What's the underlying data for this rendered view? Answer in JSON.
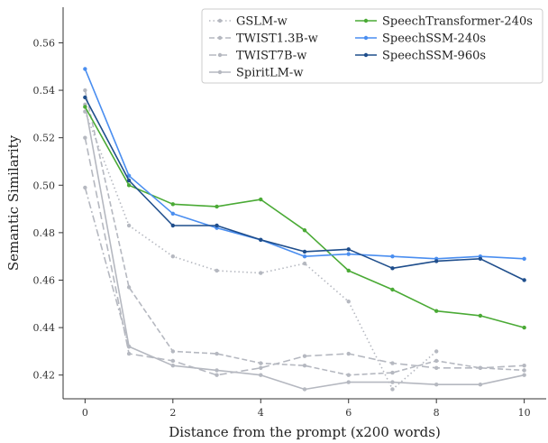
{
  "chart_data": {
    "type": "line",
    "xlabel": "Distance from the prompt (x200 words)",
    "ylabel": "Semantic Similarity",
    "xlim": [
      -0.5,
      10.5
    ],
    "ylim": [
      0.41,
      0.575
    ],
    "xticks": [
      0,
      2,
      4,
      6,
      8,
      10
    ],
    "yticks": [
      0.42,
      0.44,
      0.46,
      0.48,
      0.5,
      0.52,
      0.54,
      0.56
    ],
    "ytick_labels": [
      "0.42",
      "0.44",
      "0.46",
      "0.48",
      "0.50",
      "0.52",
      "0.54",
      "0.56"
    ],
    "grid": false,
    "legend_placement": "top-right",
    "x": [
      0,
      1,
      2,
      3,
      4,
      5,
      6,
      7,
      8,
      9,
      10
    ],
    "series": [
      {
        "name": "GSLM-w",
        "color": "#b5b8c0",
        "dash": "dotted",
        "values": [
          0.531,
          0.483,
          0.47,
          0.464,
          0.463,
          0.467,
          0.451,
          0.414,
          0.43,
          null,
          null
        ]
      },
      {
        "name": "TWIST1.3B-w",
        "color": "#b5b8c0",
        "dash": "dashed",
        "values": [
          0.54,
          0.457,
          0.43,
          0.429,
          0.425,
          0.424,
          0.42,
          0.421,
          0.426,
          0.423,
          0.422
        ]
      },
      {
        "name": "TWIST7B-w",
        "color": "#b5b8c0",
        "dash": "longdash",
        "values": [
          0.52,
          0.429,
          0.426,
          0.42,
          0.423,
          0.428,
          0.429,
          0.425,
          0.423,
          0.423,
          0.424
        ]
      },
      {
        "name": "SpiritLM-w",
        "color": "#b5b8c0",
        "dash": "solid",
        "values": [
          0.534,
          0.432,
          0.424,
          0.422,
          0.42,
          0.414,
          0.417,
          0.417,
          0.416,
          0.416,
          0.42
        ]
      },
      {
        "name": "",
        "color": "#b5b8c0",
        "dash": "dashdot",
        "values": [
          0.499,
          0.432,
          null,
          null,
          null,
          null,
          null,
          null,
          null,
          null,
          null
        ]
      },
      {
        "name": "SpeechTransformer-240s",
        "color": "#4aaa35",
        "dash": "solid",
        "values": [
          0.533,
          0.5,
          0.492,
          0.491,
          0.494,
          0.481,
          0.464,
          0.456,
          0.447,
          0.445,
          0.44
        ]
      },
      {
        "name": "SpeechSSM-240s",
        "color": "#4a8ef0",
        "dash": "solid",
        "values": [
          0.549,
          0.504,
          0.488,
          0.482,
          0.477,
          0.47,
          0.471,
          0.47,
          0.469,
          0.47,
          0.469
        ]
      },
      {
        "name": "SpeechSSM-960s",
        "color": "#1f4e8c",
        "dash": "solid",
        "values": [
          0.537,
          0.502,
          0.483,
          0.483,
          0.477,
          0.472,
          0.473,
          0.465,
          0.468,
          0.469,
          0.46
        ]
      }
    ]
  }
}
